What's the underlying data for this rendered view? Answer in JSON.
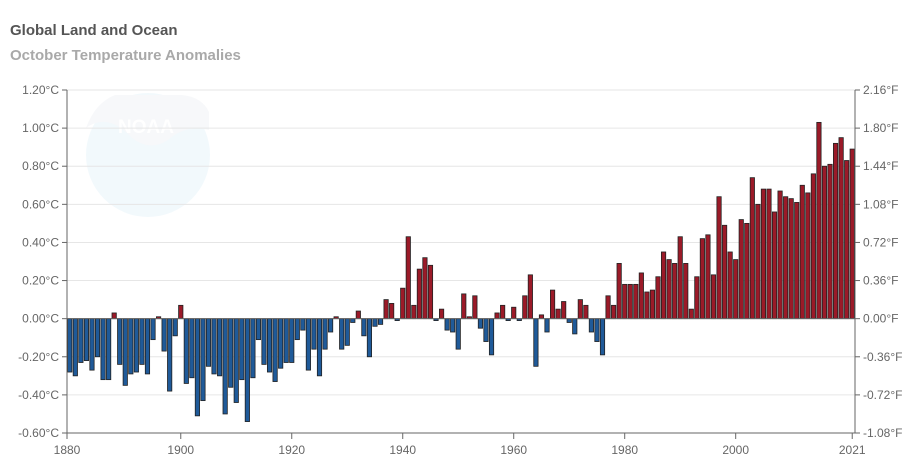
{
  "title": "Global Land and Ocean",
  "subtitle": "October Temperature Anomalies",
  "chart_data": {
    "type": "bar",
    "title": "Global Land and Ocean",
    "subtitle": "October Temperature Anomalies",
    "xlabel": "",
    "ylabel": "",
    "x": [
      1880,
      1881,
      1882,
      1883,
      1884,
      1885,
      1886,
      1887,
      1888,
      1889,
      1890,
      1891,
      1892,
      1893,
      1894,
      1895,
      1896,
      1897,
      1898,
      1899,
      1900,
      1901,
      1902,
      1903,
      1904,
      1905,
      1906,
      1907,
      1908,
      1909,
      1910,
      1911,
      1912,
      1913,
      1914,
      1915,
      1916,
      1917,
      1918,
      1919,
      1920,
      1921,
      1922,
      1923,
      1924,
      1925,
      1926,
      1927,
      1928,
      1929,
      1930,
      1931,
      1932,
      1933,
      1934,
      1935,
      1936,
      1937,
      1938,
      1939,
      1940,
      1941,
      1942,
      1943,
      1944,
      1945,
      1946,
      1947,
      1948,
      1949,
      1950,
      1951,
      1952,
      1953,
      1954,
      1955,
      1956,
      1957,
      1958,
      1959,
      1960,
      1961,
      1962,
      1963,
      1964,
      1965,
      1966,
      1967,
      1968,
      1969,
      1970,
      1971,
      1972,
      1973,
      1974,
      1975,
      1976,
      1977,
      1978,
      1979,
      1980,
      1981,
      1982,
      1983,
      1984,
      1985,
      1986,
      1987,
      1988,
      1989,
      1990,
      1991,
      1992,
      1993,
      1994,
      1995,
      1996,
      1997,
      1998,
      1999,
      2000,
      2001,
      2002,
      2003,
      2004,
      2005,
      2006,
      2007,
      2008,
      2009,
      2010,
      2011,
      2012,
      2013,
      2014,
      2015,
      2016,
      2017,
      2018,
      2019,
      2020,
      2021
    ],
    "values": [
      -0.28,
      -0.3,
      -0.23,
      -0.22,
      -0.27,
      -0.2,
      -0.32,
      -0.32,
      0.03,
      -0.24,
      -0.35,
      -0.29,
      -0.28,
      -0.24,
      -0.29,
      -0.11,
      0.01,
      -0.17,
      -0.38,
      -0.09,
      0.07,
      -0.34,
      -0.31,
      -0.51,
      -0.43,
      -0.25,
      -0.29,
      -0.3,
      -0.5,
      -0.36,
      -0.44,
      -0.32,
      -0.54,
      -0.31,
      -0.11,
      -0.24,
      -0.28,
      -0.33,
      -0.26,
      -0.23,
      -0.23,
      -0.11,
      -0.06,
      -0.27,
      -0.16,
      -0.3,
      -0.16,
      -0.07,
      0.01,
      -0.16,
      -0.14,
      -0.02,
      0.04,
      -0.09,
      -0.2,
      -0.04,
      -0.03,
      0.1,
      0.08,
      -0.01,
      0.16,
      0.43,
      0.07,
      0.26,
      0.32,
      0.28,
      -0.01,
      0.05,
      -0.06,
      -0.07,
      -0.16,
      0.13,
      0.01,
      0.12,
      -0.05,
      -0.12,
      -0.19,
      0.03,
      0.07,
      -0.01,
      0.06,
      -0.01,
      0.12,
      0.23,
      -0.25,
      0.02,
      -0.07,
      0.15,
      0.05,
      0.09,
      -0.02,
      -0.08,
      0.1,
      0.07,
      -0.07,
      -0.12,
      -0.19,
      0.12,
      0.07,
      0.29,
      0.18,
      0.18,
      0.18,
      0.24,
      0.14,
      0.15,
      0.22,
      0.35,
      0.31,
      0.29,
      0.43,
      0.29,
      0.05,
      0.22,
      0.42,
      0.44,
      0.23,
      0.64,
      0.49,
      0.35,
      0.31,
      0.52,
      0.5,
      0.74,
      0.6,
      0.68,
      0.68,
      0.56,
      0.67,
      0.64,
      0.63,
      0.61,
      0.7,
      0.66,
      0.76,
      1.03,
      0.8,
      0.81,
      0.92,
      0.95,
      0.83,
      0.89
    ],
    "ylim": [
      -0.6,
      1.2
    ],
    "y_ticks": [
      "1.20°C",
      "1.00°C",
      "0.80°C",
      "0.60°C",
      "0.40°C",
      "0.20°C",
      "0.00°C",
      "-0.20°C",
      "-0.40°C",
      "-0.60°C"
    ],
    "y2_ticks": [
      "2.16°F",
      "1.80°F",
      "1.44°F",
      "1.08°F",
      "0.72°F",
      "0.36°F",
      "0.00°F",
      "-0.36°F",
      "-0.72°F",
      "-1.08°F"
    ],
    "x_ticks": [
      "1880",
      "1900",
      "1920",
      "1940",
      "1960",
      "1980",
      "2000",
      "2021"
    ],
    "colors": {
      "positive": "#9b1a28",
      "negative": "#1f5a99",
      "grid": "#e6e6e6",
      "axis": "#666666",
      "bar_stroke": "#222222"
    },
    "grid": true,
    "legend": "none"
  }
}
